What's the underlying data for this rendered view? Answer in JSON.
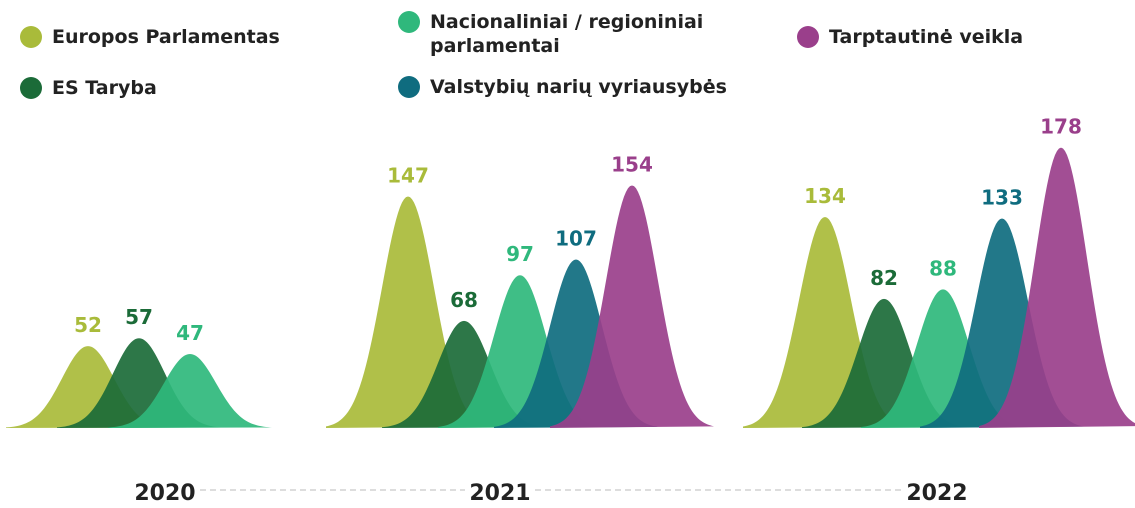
{
  "chart_data": {
    "type": "bell",
    "categories": [
      "2020",
      "2021",
      "2022"
    ],
    "series": [
      {
        "name": "Europos Parlamentas",
        "color": "#a9bb3a",
        "values": [
          52,
          147,
          134
        ]
      },
      {
        "name": "ES Taryba",
        "color": "#1b6b38",
        "values": [
          57,
          68,
          82
        ]
      },
      {
        "name": "Nacionaliniai / regioniniai parlamentai",
        "color": "#2fb87c",
        "values": [
          47,
          97,
          88
        ]
      },
      {
        "name": "Valstybių narių vyriausybės",
        "color": "#0f6c7f",
        "values": [
          null,
          107,
          133
        ]
      },
      {
        "name": "Tarptautinė veikla",
        "color": "#9a3f8b",
        "values": [
          null,
          154,
          178
        ]
      }
    ]
  }
}
